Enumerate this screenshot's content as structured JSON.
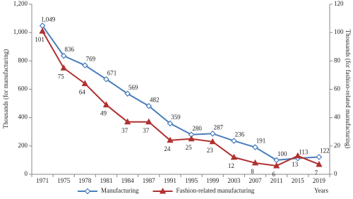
{
  "chart_data": {
    "type": "line",
    "categories": [
      "1971",
      "1975",
      "1978",
      "1981",
      "1984",
      "1987",
      "1991",
      "1995",
      "1999",
      "2003",
      "2007",
      "2011",
      "2015",
      "2019"
    ],
    "x_label": "Years",
    "y_label": "Thousands (for manufacturing)",
    "y2_label": "Thousands (for fashion-related manufacturing)",
    "ylim": [
      0,
      1200
    ],
    "yticks": [
      0,
      200,
      400,
      600,
      800,
      {
        "value": 1000,
        "label": "1,000"
      },
      {
        "value": 1200,
        "label": "1,200"
      }
    ],
    "y2lim": [
      0,
      120
    ],
    "y2ticks": [
      0,
      20,
      40,
      60,
      80,
      100,
      120
    ],
    "legend": "bottom",
    "series": [
      {
        "name": "Manufacturing",
        "color": "#4a7ebb",
        "marker": "diamond",
        "values": [
          1049,
          836,
          769,
          671,
          569,
          482,
          359,
          280,
          287,
          236,
          191,
          100,
          113,
          122
        ],
        "value_labels": [
          "1,049",
          "836",
          "769",
          "671",
          "569",
          "482",
          "359",
          "280",
          "287",
          "236",
          "191",
          "100",
          "113",
          "122"
        ]
      },
      {
        "name": "Fashion-related manufacturing",
        "color": "#b03030",
        "marker": "triangle",
        "axis": "y2",
        "values": [
          101,
          75,
          64,
          49,
          37,
          37,
          24,
          25,
          23,
          12,
          8,
          6,
          13,
          7
        ]
      }
    ]
  }
}
